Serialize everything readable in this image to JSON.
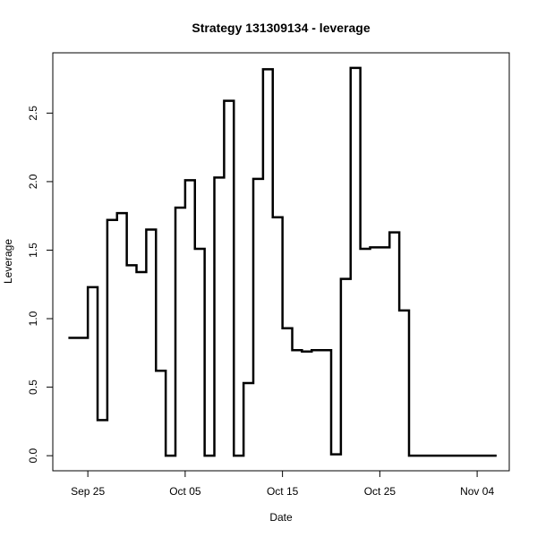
{
  "chart_data": {
    "type": "line",
    "style": "step",
    "title": "Strategy 131309134 - leverage",
    "xlabel": "Date",
    "ylabel": "Leverage",
    "x_ticks": [
      {
        "day": 0,
        "label": "Sep 25"
      },
      {
        "day": 10,
        "label": "Oct 05"
      },
      {
        "day": 20,
        "label": "Oct 15"
      },
      {
        "day": 30,
        "label": "Oct 25"
      },
      {
        "day": 40,
        "label": "Nov 04"
      }
    ],
    "y_ticks": [
      0.0,
      0.5,
      1.0,
      1.5,
      2.0,
      2.5
    ],
    "y_tick_labels": [
      "0.0",
      "0.5",
      "1.0",
      "1.5",
      "2.0",
      "2.5"
    ],
    "xlim": [
      -3.6,
      43.3
    ],
    "ylim": [
      -0.11,
      2.94
    ],
    "x_unit": "days since Sep 25",
    "series": [
      {
        "name": "leverage",
        "x": [
          -2,
          -1,
          0,
          1,
          2,
          3,
          4,
          5,
          6,
          7,
          8,
          9,
          10,
          11,
          12,
          13,
          14,
          15,
          16,
          17,
          18,
          19,
          20,
          21,
          22,
          23,
          24,
          25,
          26,
          27,
          28,
          29,
          30,
          31,
          32,
          33,
          34,
          35,
          36,
          37,
          38,
          39,
          40,
          41,
          42
        ],
        "values": [
          0.86,
          0.86,
          1.23,
          0.26,
          1.72,
          1.77,
          1.39,
          1.34,
          1.65,
          0.62,
          0.0,
          1.81,
          2.01,
          1.51,
          0.0,
          2.03,
          2.59,
          0.0,
          0.53,
          2.02,
          2.82,
          1.74,
          0.93,
          0.77,
          0.76,
          0.77,
          0.77,
          0.01,
          1.29,
          2.83,
          1.51,
          1.52,
          1.52,
          1.63,
          1.06,
          0.0,
          0.0,
          0.0,
          0.0,
          0.0,
          0.0,
          0.0,
          0.0,
          0.0,
          0.0
        ]
      }
    ],
    "line_color": "#000000",
    "grid": false,
    "legend": "none"
  }
}
